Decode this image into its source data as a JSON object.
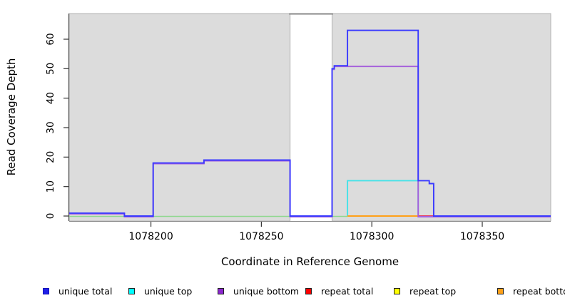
{
  "chart_data": {
    "type": "line",
    "title": "",
    "xlabel": "Coordinate in Reference Genome",
    "ylabel": "Read Coverage Depth",
    "xlim": [
      1078163,
      1078381
    ],
    "ylim": [
      0,
      68
    ],
    "x_ticks": [
      1078200,
      1078250,
      1078300,
      1078350
    ],
    "y_ticks": [
      0,
      10,
      20,
      30,
      40,
      50,
      60
    ],
    "grid": false,
    "legend_position": "bottom",
    "region_fill": "#DCDCDC",
    "region_border": "#B3B3B3",
    "gap_border_color": "#8A8A8A",
    "coverage_regions": [
      [
        1078163,
        1078263
      ],
      [
        1078282,
        1078381
      ]
    ],
    "gap_region": [
      1078263,
      1078282
    ],
    "baseline_overlap": {
      "color": "#8FD88F",
      "segments": [
        [
          1078163,
          1078289
        ]
      ]
    },
    "series": [
      {
        "name": "unique total",
        "color": "#3A3AFF",
        "points": [
          [
            1078163,
            1
          ],
          [
            1078188,
            1
          ],
          [
            1078188,
            0
          ],
          [
            1078201,
            0
          ],
          [
            1078201,
            18
          ],
          [
            1078224,
            18
          ],
          [
            1078224,
            19
          ],
          [
            1078263,
            19
          ],
          [
            1078263,
            0
          ],
          [
            1078282,
            0
          ],
          [
            1078282,
            50
          ],
          [
            1078283,
            50
          ],
          [
            1078283,
            51
          ],
          [
            1078289,
            51
          ],
          [
            1078289,
            63
          ],
          [
            1078321,
            63
          ],
          [
            1078321,
            12
          ],
          [
            1078326,
            12
          ],
          [
            1078326,
            11
          ],
          [
            1078328,
            11
          ],
          [
            1078328,
            0
          ],
          [
            1078381,
            0
          ]
        ]
      },
      {
        "name": "unique top",
        "color": "#45E2E8",
        "points": [
          [
            1078289,
            0
          ],
          [
            1078289,
            12
          ],
          [
            1078321,
            12
          ],
          [
            1078321,
            0
          ]
        ]
      },
      {
        "name": "unique bottom",
        "color": "#A55FDB",
        "points": [
          [
            1078163,
            1
          ],
          [
            1078188,
            1
          ],
          [
            1078188,
            0
          ],
          [
            1078201,
            0
          ],
          [
            1078201,
            18
          ],
          [
            1078224,
            18
          ],
          [
            1078224,
            19
          ],
          [
            1078263,
            19
          ],
          [
            1078263,
            0
          ],
          [
            1078282,
            0
          ],
          [
            1078282,
            50
          ],
          [
            1078283,
            50
          ],
          [
            1078283,
            51
          ],
          [
            1078321,
            51
          ],
          [
            1078321,
            0
          ],
          [
            1078381,
            0
          ]
        ]
      },
      {
        "name": "repeat total",
        "color": "#E8385C",
        "points": [
          [
            1078321,
            0
          ],
          [
            1078328,
            0
          ]
        ]
      },
      {
        "name": "repeat top",
        "color": "#FFFF00",
        "points": []
      },
      {
        "name": "repeat bottom",
        "color": "#FFA018",
        "points": [
          [
            1078289,
            0
          ],
          [
            1078321,
            0
          ]
        ]
      }
    ]
  },
  "legend": {
    "items": [
      {
        "label": "unique total",
        "color": "#1F1FE8",
        "border": "#1414B8"
      },
      {
        "label": "unique top",
        "color": "#00FFFF",
        "border": "#222222"
      },
      {
        "label": "unique bottom",
        "color": "#8B27CE",
        "border": "#222222"
      },
      {
        "label": "repeat total",
        "color": "#FF0000",
        "border": "#222222"
      },
      {
        "label": "repeat top",
        "color": "#FFFF00",
        "border": "#222222"
      },
      {
        "label": "repeat bottom",
        "color": "#FFA018",
        "border": "#222222"
      }
    ]
  }
}
